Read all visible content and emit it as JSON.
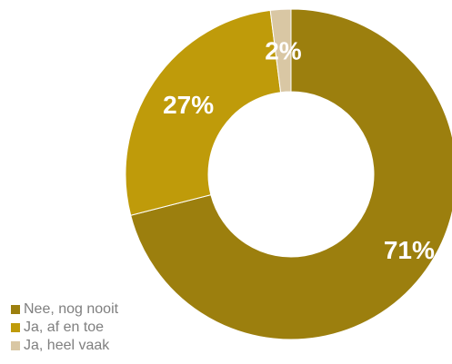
{
  "chart_data": {
    "type": "pie",
    "variant": "donut",
    "categories": [
      "Nee, nog nooit",
      "Ja, af en toe",
      "Ja, heel vaak"
    ],
    "values": [
      71,
      27,
      2
    ],
    "value_labels": [
      "71%",
      "27%",
      "2%"
    ],
    "colors": [
      "#9c7f0e",
      "#bf9b0a",
      "#d9c7a4"
    ],
    "legend_position": "bottom-left",
    "title": ""
  }
}
